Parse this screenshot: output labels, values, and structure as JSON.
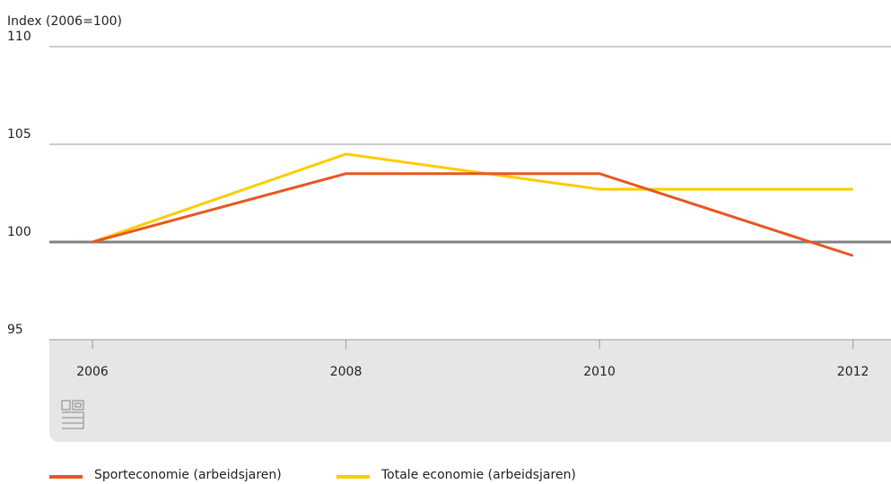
{
  "chart_data": {
    "type": "line",
    "y_axis_label": "Index (2006=100)",
    "x": [
      2006,
      2008,
      2010,
      2012
    ],
    "series": [
      {
        "name": "Sporteconomie (arbeidsjaren)",
        "color": "#e9561f",
        "values": [
          100,
          103.5,
          103.5,
          99.3
        ]
      },
      {
        "name": "Totale economie (arbeidsjaren)",
        "color": "#ffcc00",
        "values": [
          100,
          104.5,
          102.7,
          102.7
        ]
      }
    ],
    "xlim": [
      2005.66,
      2012.3
    ],
    "xticks": [
      2006,
      2008,
      2010,
      2012
    ],
    "ylim": [
      95,
      110
    ],
    "yticks": [
      95,
      100,
      105,
      110
    ],
    "reference_line": 100,
    "grid": true
  }
}
